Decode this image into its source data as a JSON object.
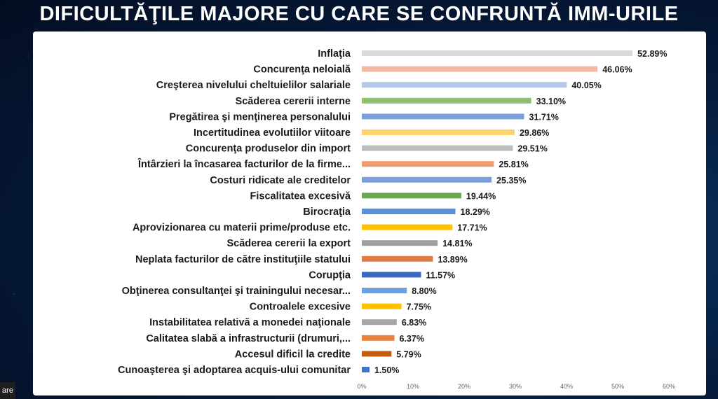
{
  "title": "DIFICULTĂŢILE MAJORE CU CARE SE CONFRUNTĂ IMM-URILE",
  "corner_text": "are",
  "chart_data": {
    "type": "bar",
    "orientation": "horizontal",
    "title": "",
    "xlabel": "",
    "ylabel": "",
    "xlim": [
      0,
      60
    ],
    "x_ticks": [
      "0%",
      "10%",
      "20%",
      "30%",
      "40%",
      "50%",
      "60%"
    ],
    "grid": false,
    "legend": false,
    "categories": [
      "Inflaţia",
      "Concurenţa neloială",
      "Creşterea nivelului cheltuielilor salariale",
      "Scăderea cererii interne",
      "Pregătirea şi menţinerea personalului",
      "Incertitudinea evolutiilor viitoare",
      "Concurenţa produselor din import",
      "Întârzieri la încasarea facturilor de la firme...",
      "Costuri ridicate ale creditelor",
      "Fiscalitatea excesivă",
      "Birocraţia",
      "Aprovizionarea cu materii prime/produse etc.",
      "Scăderea cererii la export",
      "Neplata facturilor de către instituţiile statului",
      "Corupţia",
      "Obţinerea consultanţei şi trainingului necesar...",
      "Controalele excesive",
      "Instabilitatea relativă a monedei naţionale",
      "Calitatea slabă a infrastructurii (drumuri,...",
      "Accesul dificil la credite",
      "Cunoaşterea şi adoptarea acquis-ului comunitar"
    ],
    "values": [
      52.89,
      46.06,
      40.05,
      33.1,
      31.71,
      29.86,
      29.51,
      25.81,
      25.35,
      19.44,
      18.29,
      17.71,
      14.81,
      13.89,
      11.57,
      8.8,
      7.75,
      6.83,
      6.37,
      5.79,
      1.5
    ],
    "value_labels": [
      "52.89%",
      "46.06%",
      "40.05%",
      "33.10%",
      "31.71%",
      "29.86%",
      "29.51%",
      "25.81%",
      "25.35%",
      "19.44%",
      "18.29%",
      "17.71%",
      "14.81%",
      "13.89%",
      "11.57%",
      "8.80%",
      "7.75%",
      "6.83%",
      "6.37%",
      "5.79%",
      "1.50%"
    ],
    "colors": [
      "#d9d9d9",
      "#f4b9a2",
      "#b4c7e7",
      "#8fbc6d",
      "#7ba0da",
      "#ffd46e",
      "#bdbdbd",
      "#f09a6e",
      "#7d9fd9",
      "#6aa84f",
      "#5b8fd6",
      "#ffc000",
      "#9e9e9e",
      "#e07b43",
      "#3a67c0",
      "#6ea0e0",
      "#ffc000",
      "#a6a6a6",
      "#e8823f",
      "#c55a11",
      "#4472c4"
    ]
  }
}
